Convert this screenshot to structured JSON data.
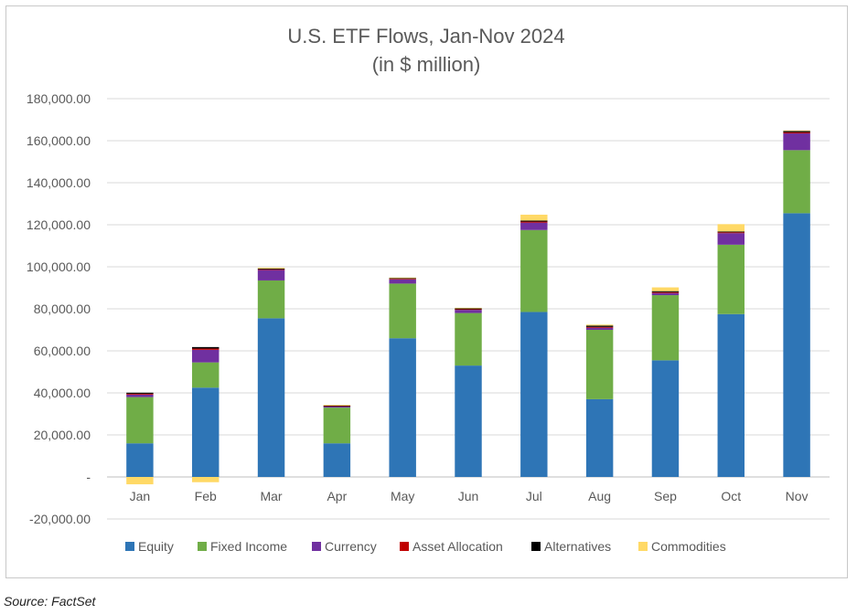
{
  "source_note": "Source: FactSet",
  "chart_data": {
    "type": "bar",
    "stacked": true,
    "title": "U.S. ETF Flows, Jan-Nov 2024",
    "subtitle": "(in $ million)",
    "xlabel": "",
    "ylabel": "",
    "ylim": [
      -20000,
      180000
    ],
    "yticks": [
      -20000,
      0,
      20000,
      40000,
      60000,
      80000,
      100000,
      120000,
      140000,
      160000,
      180000
    ],
    "ytick_labels": [
      "-20,000.00",
      "-",
      "20,000.00",
      "40,000.00",
      "60,000.00",
      "80,000.00",
      "100,000.00",
      "120,000.00",
      "140,000.00",
      "160,000.00",
      "180,000.00"
    ],
    "grid": true,
    "legend_position": "bottom",
    "categories": [
      "Jan",
      "Feb",
      "Mar",
      "Apr",
      "May",
      "Jun",
      "Jul",
      "Aug",
      "Sep",
      "Oct",
      "Nov"
    ],
    "series": [
      {
        "name": "Equity",
        "color": "#2E75B6",
        "values": [
          16000,
          42500,
          75500,
          16000,
          66000,
          53000,
          78500,
          37000,
          55500,
          77500,
          125500
        ]
      },
      {
        "name": "Fixed Income",
        "color": "#70AD47",
        "values": [
          22000,
          12000,
          18000,
          17000,
          26000,
          25000,
          39000,
          33000,
          31000,
          33000,
          30000
        ]
      },
      {
        "name": "Currency",
        "color": "#7030A0",
        "values": [
          1200,
          6000,
          5000,
          500,
          2000,
          1500,
          3500,
          1000,
          1000,
          5500,
          8000
        ]
      },
      {
        "name": "Asset Allocation",
        "color": "#C00000",
        "values": [
          400,
          600,
          300,
          200,
          300,
          300,
          500,
          400,
          400,
          400,
          500
        ]
      },
      {
        "name": "Alternatives",
        "color": "#000000",
        "values": [
          500,
          700,
          400,
          300,
          300,
          400,
          500,
          600,
          500,
          400,
          600
        ]
      },
      {
        "name": "Commodities",
        "color": "#FFD966",
        "values": [
          -3500,
          -2500,
          400,
          300,
          300,
          300,
          2800,
          500,
          1800,
          3500,
          300
        ]
      }
    ]
  }
}
